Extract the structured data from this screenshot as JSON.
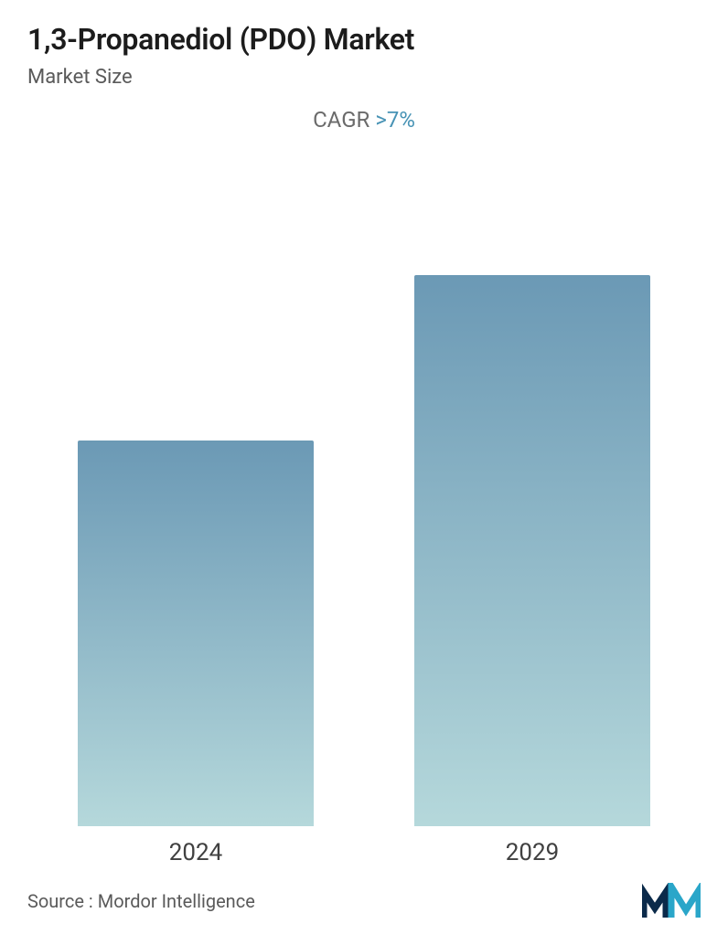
{
  "header": {
    "title": "1,3-Propanediol (PDO) Market",
    "subtitle": "Market Size",
    "cagr_label": "CAGR ",
    "cagr_value": ">7%"
  },
  "chart": {
    "type": "bar",
    "categories": [
      "2024",
      "2029"
    ],
    "values": [
      70,
      100
    ],
    "ylim": [
      0,
      115
    ],
    "bar_gradient_top": "#6b99b5",
    "bar_gradient_bottom": "#b5d8db",
    "background_color": "#ffffff",
    "bar_width_pct": 78,
    "tick_fontsize": 26,
    "tick_color": "#404040"
  },
  "footer": {
    "source_text": "Source :  Mordor Intelligence",
    "logo_color_dark": "#0b2a4a",
    "logo_color_accent": "#2aa6c9"
  },
  "typography": {
    "title_fontsize": 32,
    "title_weight": 600,
    "subtitle_fontsize": 22,
    "cagr_fontsize": 24,
    "source_fontsize": 20,
    "title_color": "#1c1c1c",
    "subtitle_color": "#5a5a5a",
    "cagr_label_color": "#6b6b6b",
    "cagr_value_color": "#4893b5"
  }
}
